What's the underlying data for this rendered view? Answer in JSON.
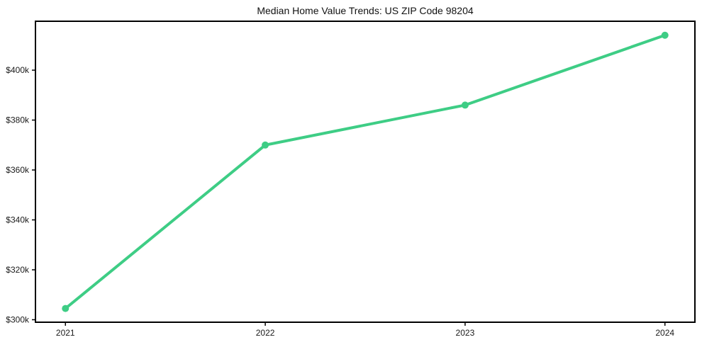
{
  "chart_data": {
    "type": "line",
    "title": "Median Home Value Trends: US ZIP Code 98204",
    "x": [
      2021,
      2022,
      2023,
      2024
    ],
    "xtick_labels": [
      "2021",
      "2022",
      "2023",
      "2024"
    ],
    "series": [
      {
        "name": "Median Home Value",
        "values": [
          304500,
          370000,
          386000,
          414000
        ]
      }
    ],
    "xlabel": "",
    "ylabel": "",
    "ytick_values": [
      300000,
      320000,
      340000,
      360000,
      380000,
      400000
    ],
    "ytick_labels": [
      "$300k",
      "$320k",
      "$340k",
      "$360k",
      "$380k",
      "$400k"
    ],
    "xlim": [
      2020.85,
      2024.15
    ],
    "ylim": [
      299000,
      419600
    ],
    "grid": false,
    "legend_position": "none",
    "line_color": "#3ecd85",
    "marker": "circle",
    "axis_color": "#000000",
    "background_color": "#ffffff"
  }
}
